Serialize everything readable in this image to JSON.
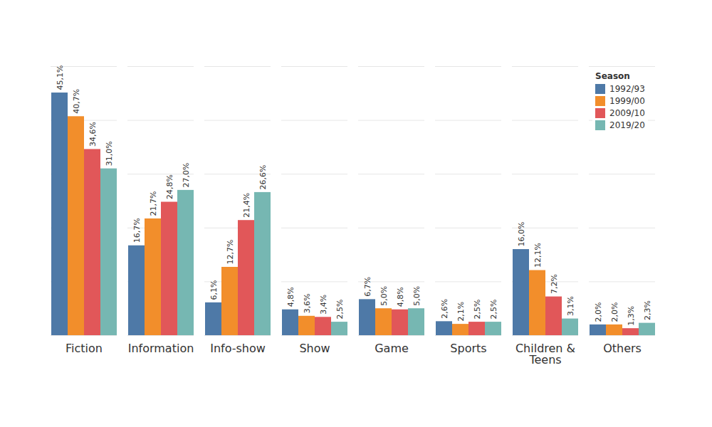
{
  "chart_data": {
    "type": "bar",
    "categories": [
      "Fiction",
      "Information",
      "Info-show",
      "Show",
      "Game",
      "Sports",
      "Children & Teens",
      "Others"
    ],
    "series": [
      {
        "name": "1992/93",
        "color": "#4e79a7",
        "values": [
          45.1,
          16.7,
          6.1,
          4.8,
          6.7,
          2.6,
          16.0,
          2.0
        ],
        "value_labels": [
          "45,1%",
          "16,7%",
          "6,1%",
          "4,8%",
          "6,7%",
          "2,6%",
          "16,0%",
          "2,0%"
        ]
      },
      {
        "name": "1999/00",
        "color": "#f28e2b",
        "values": [
          40.7,
          21.7,
          12.7,
          3.6,
          5.0,
          2.1,
          12.1,
          2.0
        ],
        "value_labels": [
          "40,7%",
          "21,7%",
          "12,7%",
          "3,6%",
          "5,0%",
          "2,1%",
          "12,1%",
          "2,0%"
        ]
      },
      {
        "name": "2009/10",
        "color": "#e15759",
        "values": [
          34.6,
          24.8,
          21.4,
          3.4,
          4.8,
          2.5,
          7.2,
          1.3
        ],
        "value_labels": [
          "34,6%",
          "24,8%",
          "21,4%",
          "3,4%",
          "4,8%",
          "2,5%",
          "7,2%",
          "1,3%"
        ]
      },
      {
        "name": "2019/20",
        "color": "#76b7b2",
        "values": [
          31.0,
          27.0,
          26.6,
          2.5,
          5.0,
          2.5,
          3.1,
          2.3
        ],
        "value_labels": [
          "31,0%",
          "27,0%",
          "26,6%",
          "2,5%",
          "5,0%",
          "2,5%",
          "3,1%",
          "2,3%"
        ]
      }
    ],
    "legend_title": "Season",
    "ylim": [
      0,
      50
    ],
    "yticks": [
      0,
      10,
      20,
      30,
      40,
      50
    ],
    "grid": true,
    "legend": "top-right",
    "data_labels": true,
    "tick_labels": "x"
  }
}
